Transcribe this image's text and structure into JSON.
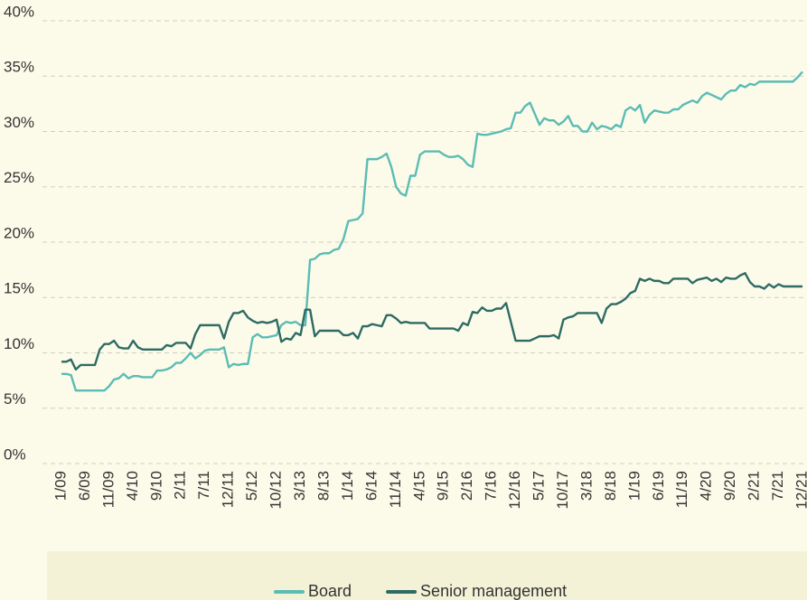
{
  "chart_data": {
    "type": "line",
    "categories": [
      "1/09",
      null,
      null,
      null,
      null,
      "6/09",
      null,
      null,
      null,
      null,
      "11/09",
      null,
      null,
      null,
      null,
      "4/10",
      null,
      null,
      null,
      null,
      "9/10",
      null,
      null,
      null,
      null,
      "2/11",
      null,
      null,
      null,
      null,
      "7/11",
      null,
      null,
      null,
      null,
      "12/11",
      null,
      null,
      null,
      null,
      "5/12",
      null,
      null,
      null,
      null,
      "10/12",
      null,
      null,
      null,
      null,
      "3/13",
      null,
      null,
      null,
      null,
      "8/13",
      null,
      null,
      null,
      null,
      "1/14",
      null,
      null,
      null,
      null,
      "6/14",
      null,
      null,
      null,
      null,
      "11/14",
      null,
      null,
      null,
      null,
      "4/15",
      null,
      null,
      null,
      null,
      "9/15",
      null,
      null,
      null,
      null,
      "2/16",
      null,
      null,
      null,
      null,
      "7/16",
      null,
      null,
      null,
      null,
      "12/16",
      null,
      null,
      null,
      null,
      "5/17",
      null,
      null,
      null,
      null,
      "10/17",
      null,
      null,
      null,
      null,
      "3/18",
      null,
      null,
      null,
      null,
      "8/18",
      null,
      null,
      null,
      null,
      "1/19",
      null,
      null,
      null,
      null,
      "6/19",
      null,
      null,
      null,
      null,
      "11/19",
      null,
      null,
      null,
      null,
      "4/20",
      null,
      null,
      null,
      null,
      "9/20",
      null,
      null,
      null,
      null,
      "2/21",
      null,
      null,
      null,
      null,
      "7/21",
      null,
      null,
      null,
      null,
      "12/21"
    ],
    "series": [
      {
        "name": "Board",
        "color": "#5bbcb4",
        "values": [
          8.1,
          8.1,
          8.0,
          6.6,
          6.6,
          6.6,
          6.6,
          6.6,
          6.6,
          6.6,
          7.0,
          7.6,
          7.7,
          8.1,
          7.7,
          7.9,
          7.9,
          7.8,
          7.8,
          7.8,
          8.4,
          8.4,
          8.5,
          8.7,
          9.1,
          9.1,
          9.5,
          10.0,
          9.5,
          9.8,
          10.2,
          10.3,
          10.3,
          10.3,
          10.5,
          8.7,
          9.0,
          8.9,
          9.0,
          9.0,
          11.4,
          11.7,
          11.4,
          11.4,
          11.5,
          11.6,
          12.5,
          12.8,
          12.7,
          12.8,
          12.5,
          12.5,
          18.4,
          18.5,
          18.9,
          19.0,
          19.0,
          19.3,
          19.4,
          20.3,
          21.9,
          22.0,
          22.1,
          22.6,
          27.5,
          27.5,
          27.5,
          27.7,
          28.0,
          26.8,
          25.0,
          24.4,
          24.2,
          26.0,
          26.0,
          27.9,
          28.2,
          28.2,
          28.2,
          28.2,
          27.9,
          27.7,
          27.7,
          27.8,
          27.5,
          27.0,
          26.8,
          29.8,
          29.7,
          29.7,
          29.8,
          29.9,
          30.0,
          30.2,
          30.3,
          31.7,
          31.7,
          32.3,
          32.6,
          31.6,
          30.6,
          31.2,
          31.0,
          31.0,
          30.6,
          30.9,
          31.4,
          30.5,
          30.5,
          30.0,
          30.0,
          30.8,
          30.2,
          30.5,
          30.4,
          30.2,
          30.6,
          30.4,
          31.9,
          32.2,
          31.9,
          32.4,
          30.8,
          31.5,
          31.9,
          31.8,
          31.7,
          31.7,
          32.0,
          32.0,
          32.4,
          32.6,
          32.8,
          32.6,
          33.2,
          33.5,
          33.3,
          33.1,
          32.9,
          33.4,
          33.7,
          33.7,
          34.2,
          34.0,
          34.3,
          34.2,
          34.5,
          34.5,
          34.5,
          34.5,
          34.5,
          34.5,
          34.5,
          34.5,
          34.9,
          35.4
        ]
      },
      {
        "name": "Senior management",
        "color": "#2e6b64",
        "values": [
          9.2,
          9.2,
          9.4,
          8.5,
          8.9,
          8.9,
          8.9,
          8.9,
          10.3,
          10.8,
          10.8,
          11.1,
          10.5,
          10.4,
          10.4,
          11.1,
          10.5,
          10.3,
          10.3,
          10.3,
          10.3,
          10.3,
          10.7,
          10.6,
          10.9,
          10.9,
          10.9,
          10.4,
          11.7,
          12.5,
          12.5,
          12.5,
          12.5,
          12.5,
          11.3,
          12.8,
          13.6,
          13.6,
          13.8,
          13.2,
          12.9,
          12.7,
          12.8,
          12.7,
          12.8,
          13.0,
          11.0,
          11.3,
          11.2,
          11.8,
          11.6,
          13.9,
          13.9,
          11.5,
          12.0,
          12.0,
          12.0,
          12.0,
          12.0,
          11.6,
          11.6,
          11.8,
          11.3,
          12.4,
          12.4,
          12.6,
          12.5,
          12.4,
          13.4,
          13.4,
          13.1,
          12.7,
          12.8,
          12.7,
          12.7,
          12.7,
          12.7,
          12.2,
          12.2,
          12.2,
          12.2,
          12.2,
          12.2,
          12.0,
          12.7,
          12.5,
          13.7,
          13.6,
          14.1,
          13.8,
          13.8,
          14.0,
          14.0,
          14.5,
          12.8,
          11.1,
          11.1,
          11.1,
          11.1,
          11.3,
          11.5,
          11.5,
          11.5,
          11.6,
          11.3,
          13.0,
          13.2,
          13.3,
          13.6,
          13.6,
          13.6,
          13.6,
          13.6,
          12.7,
          14.0,
          14.4,
          14.4,
          14.6,
          14.9,
          15.4,
          15.6,
          16.7,
          16.5,
          16.7,
          16.5,
          16.5,
          16.3,
          16.3,
          16.7,
          16.7,
          16.7,
          16.7,
          16.3,
          16.6,
          16.7,
          16.8,
          16.5,
          16.7,
          16.4,
          16.8,
          16.7,
          16.7,
          17.0,
          17.2,
          16.4,
          16.0,
          16.0,
          15.8,
          16.2,
          15.9,
          16.2,
          16.0,
          16.0,
          16.0,
          16.0,
          16.0
        ]
      }
    ],
    "ylim": [
      0,
      40
    ],
    "yticks": [
      {
        "value": 0,
        "label": "0%"
      },
      {
        "value": 5,
        "label": "5%"
      },
      {
        "value": 10,
        "label": "10%"
      },
      {
        "value": 15,
        "label": "15%"
      },
      {
        "value": 20,
        "label": "20%"
      },
      {
        "value": 25,
        "label": "25%"
      },
      {
        "value": 30,
        "label": "30%"
      },
      {
        "value": 35,
        "label": "35%"
      },
      {
        "value": 40,
        "label": "40%"
      }
    ],
    "grid": true,
    "legend": "bottom"
  }
}
